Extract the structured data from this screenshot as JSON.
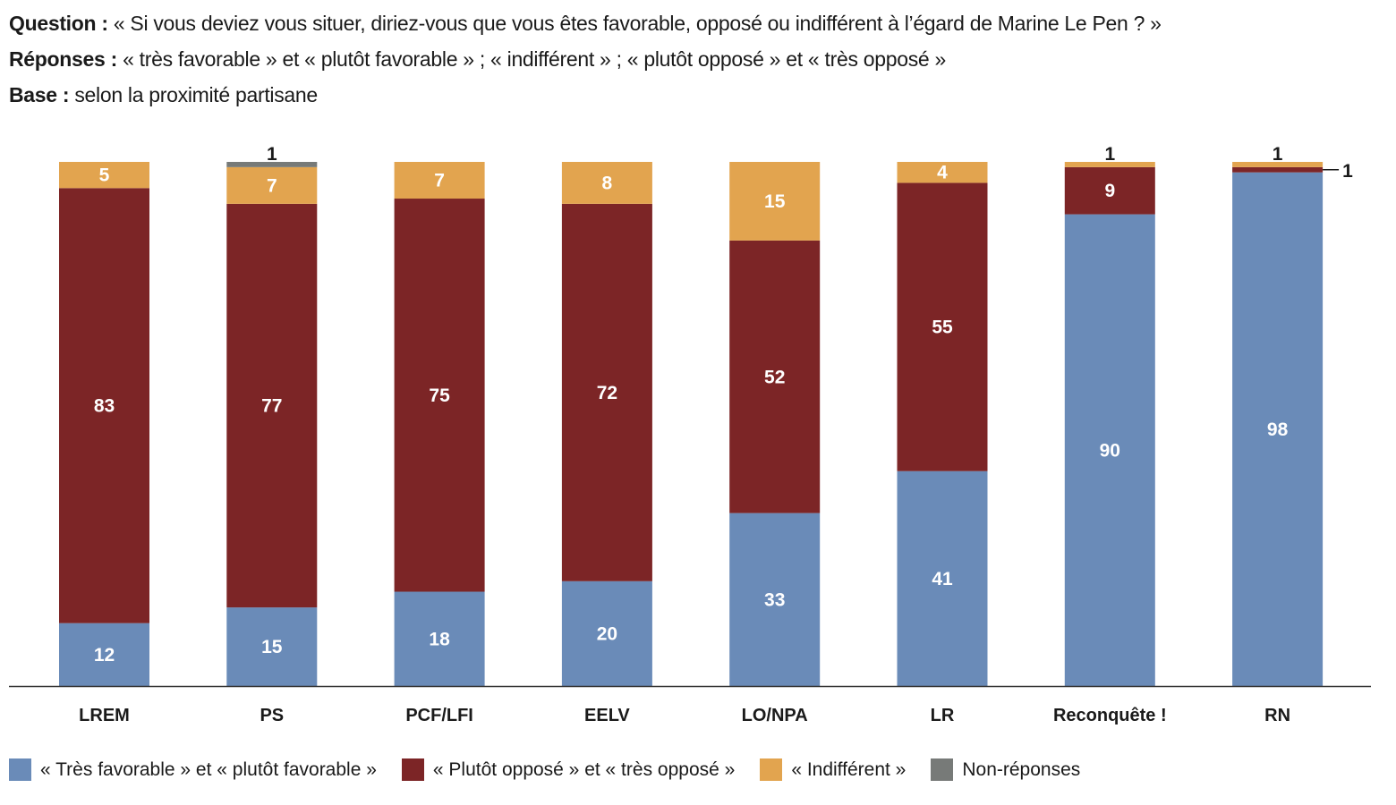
{
  "header": {
    "question_label": "Question :",
    "question_text": " « Si vous deviez vous situer, diriez-vous que vous êtes favorable, opposé ou indifférent à l’égard de Marine Le Pen ? »",
    "responses_label": "Réponses :",
    "responses_text": " « très favorable » et « plutôt favorable » ; « indifférent » ; « plutôt opposé » et « très opposé »",
    "base_label": "Base :",
    "base_text": " selon la proximité partisane"
  },
  "chart_data": {
    "type": "bar",
    "stacked": true,
    "title": "Question : « Si vous deviez vous situer, diriez-vous que vous êtes favorable, opposé ou indifférent à l’égard de Marine Le Pen ? »",
    "xlabel": "",
    "ylabel": "",
    "ylim": [
      0,
      100
    ],
    "grid": false,
    "legend_position": "bottom-left",
    "categories": [
      "LREM",
      "PS",
      "PCF/LFI",
      "EELV",
      "LO/NPA",
      "LR",
      "Reconquête !",
      "RN"
    ],
    "series": [
      {
        "name": "« Très favorable » et « plutôt favorable »",
        "color": "#6a8bb8",
        "values": [
          12,
          15,
          18,
          20,
          33,
          41,
          90,
          98
        ]
      },
      {
        "name": "« Plutôt opposé » et « très opposé »",
        "color": "#7c2526",
        "values": [
          83,
          77,
          75,
          72,
          52,
          55,
          9,
          1
        ]
      },
      {
        "name": "« Indifférent »",
        "color": "#e2a44f",
        "values": [
          5,
          7,
          7,
          8,
          15,
          4,
          1,
          1
        ]
      },
      {
        "name": "Non-réponses",
        "color": "#777a78",
        "values": [
          0,
          1,
          0,
          0,
          0,
          0,
          0,
          0
        ]
      }
    ]
  }
}
